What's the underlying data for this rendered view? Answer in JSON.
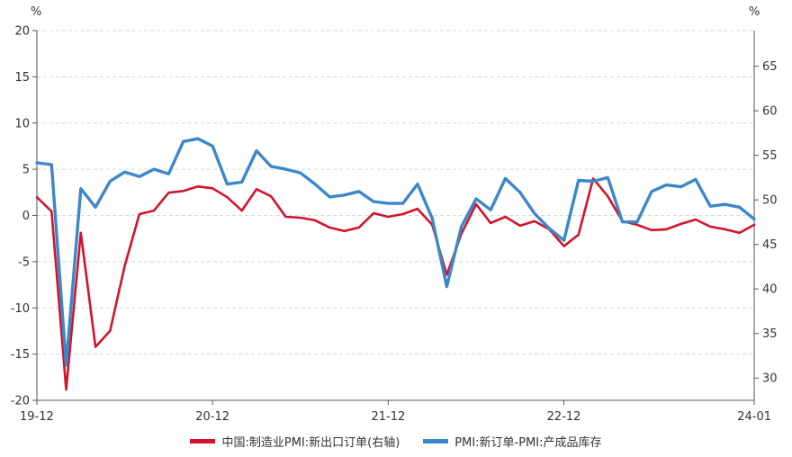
{
  "chart_data": {
    "type": "line",
    "left_axis": {
      "unit": "%",
      "min": -20,
      "max": 20,
      "ticks": [
        20,
        15,
        10,
        5,
        0,
        -5,
        -10,
        -15,
        -20
      ]
    },
    "right_axis": {
      "unit": "%",
      "min": 27.5,
      "max": 69,
      "ticks": [
        65,
        60,
        55,
        50,
        45,
        40,
        35,
        30
      ]
    },
    "x_axis": {
      "start": "19-12",
      "ticks": [
        {
          "index": 0,
          "label": "19-12"
        },
        {
          "index": 12,
          "label": "20-12"
        },
        {
          "index": 24,
          "label": "21-12"
        },
        {
          "index": 36,
          "label": "22-12"
        },
        {
          "index": 49,
          "label": "24-01"
        }
      ]
    },
    "grid": "horizontal-dashed",
    "legend_position": "bottom",
    "series": [
      {
        "name": "中国:制造业PMI:新出口订单(右轴)",
        "axis": "right",
        "color": "#d0142c",
        "values": [
          50.3,
          48.7,
          28.7,
          46.3,
          33.5,
          35.3,
          42.6,
          48.4,
          48.8,
          50.8,
          51.0,
          51.5,
          51.3,
          50.3,
          48.8,
          51.2,
          50.4,
          48.1,
          48.0,
          47.7,
          46.9,
          46.5,
          46.9,
          48.5,
          48.1,
          48.4,
          49.0,
          47.2,
          41.6,
          46.2,
          49.5,
          47.4,
          48.1,
          47.1,
          47.6,
          46.7,
          44.8,
          46.1,
          52.4,
          50.4,
          47.6,
          47.2,
          46.6,
          46.7,
          47.3,
          47.8,
          47.0,
          46.7,
          46.3,
          47.2
        ]
      },
      {
        "name": "PMI:新订单-PMI:产成品库存",
        "axis": "left",
        "color": "#3d87c9",
        "values": [
          5.7,
          5.5,
          -16.2,
          2.9,
          0.9,
          3.7,
          4.7,
          4.2,
          5.0,
          4.5,
          8.0,
          8.3,
          7.5,
          3.4,
          3.6,
          7.0,
          5.3,
          5.0,
          4.6,
          3.4,
          2.0,
          2.2,
          2.6,
          1.5,
          1.3,
          1.3,
          3.4,
          -0.3,
          -7.7,
          -1.2,
          1.8,
          0.6,
          4.0,
          2.5,
          0.2,
          -1.4,
          -2.7,
          3.8,
          3.7,
          4.1,
          -0.7,
          -0.7,
          2.6,
          3.3,
          3.1,
          3.9,
          1.0,
          1.2,
          0.9,
          -0.4
        ]
      }
    ]
  }
}
